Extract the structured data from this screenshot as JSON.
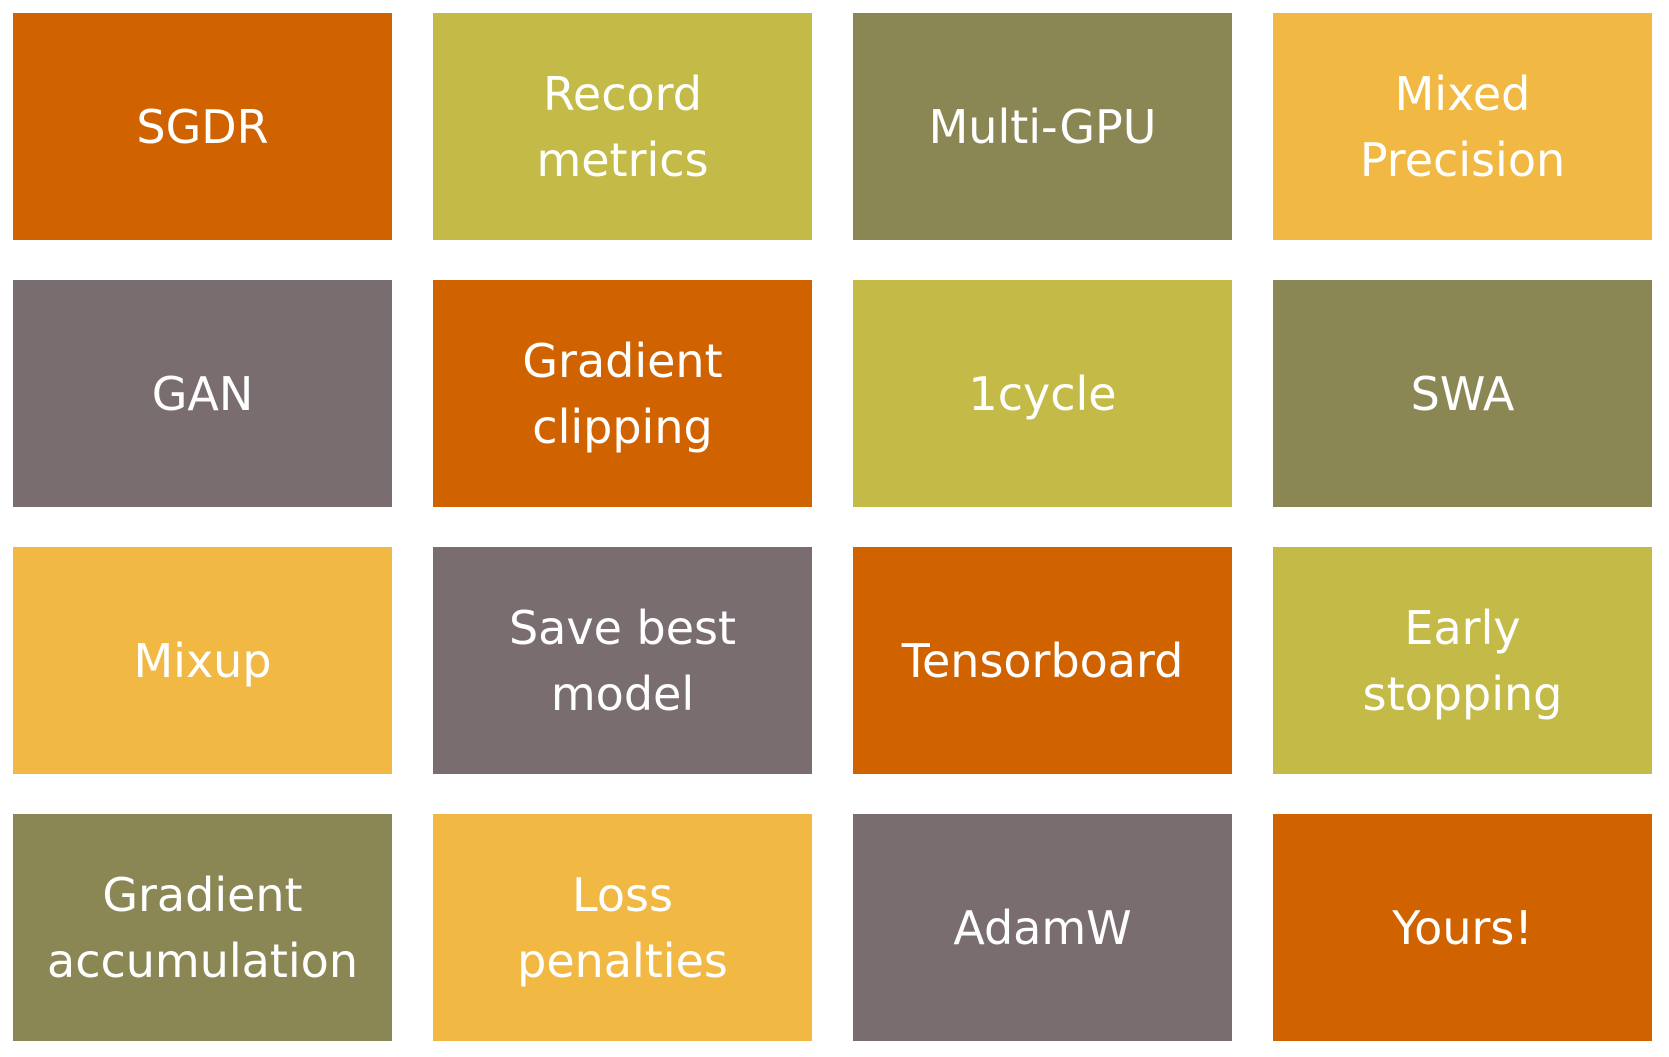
{
  "colors": {
    "orange": "#D06300",
    "yellow_olive": "#C4BA48",
    "olive": "#8B8754",
    "gold": "#F2B844",
    "mauve": "#7A6D70"
  },
  "tiles": [
    {
      "label": "SGDR",
      "color": "#D06300"
    },
    {
      "label": "Record\nmetrics",
      "color": "#C4BA48"
    },
    {
      "label": "Multi-GPU",
      "color": "#8B8754"
    },
    {
      "label": "Mixed\nPrecision",
      "color": "#F2B844"
    },
    {
      "label": "GAN",
      "color": "#7A6D70"
    },
    {
      "label": "Gradient\nclipping",
      "color": "#D06300"
    },
    {
      "label": "1cycle",
      "color": "#C4BA48"
    },
    {
      "label": "SWA",
      "color": "#8B8754"
    },
    {
      "label": "Mixup",
      "color": "#F2B844"
    },
    {
      "label": "Save best\nmodel",
      "color": "#7A6D70"
    },
    {
      "label": "Tensorboard",
      "color": "#D06300"
    },
    {
      "label": "Early\nstopping",
      "color": "#C4BA48"
    },
    {
      "label": "Gradient\naccumulation",
      "color": "#8B8754"
    },
    {
      "label": "Loss\npenalties",
      "color": "#F2B844"
    },
    {
      "label": "AdamW",
      "color": "#7A6D70"
    },
    {
      "label": "Yours!",
      "color": "#D06300"
    }
  ]
}
